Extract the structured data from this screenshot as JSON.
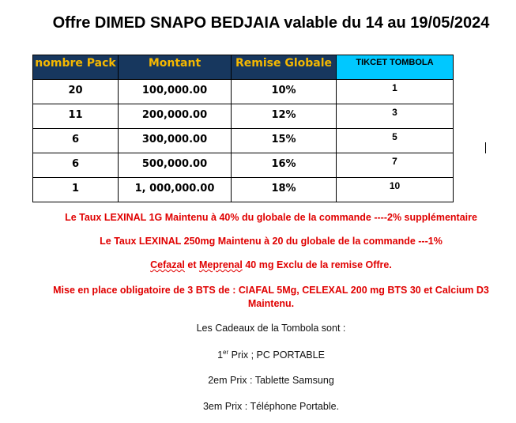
{
  "title": "Offre DIMED SNAPO BEDJAIA valable du 14 au 19/05/2024",
  "table": {
    "headers": [
      "nombre Pack",
      "Montant",
      "Remise Globale",
      "TIKCET TOMBOLA"
    ],
    "rows": [
      [
        "20",
        "100,000.00",
        "10%",
        "1"
      ],
      [
        "11",
        "200,000.00",
        "12%",
        "3"
      ],
      [
        "6",
        "300,000.00",
        "15%",
        "5"
      ],
      [
        "6",
        "500,000.00",
        "16%",
        "7"
      ],
      [
        "1",
        "1, 000,000.00",
        "18%",
        "10"
      ]
    ]
  },
  "notes": {
    "lexinal_1g": "Le Taux LEXINAL 1G Maintenu à 40% du globale de la commande ----2% supplémentaire",
    "lexinal_250": "Le Taux LEXINAL 250mg Maintenu à 20 du globale de la commande ---1%",
    "exclu_a": "Cefazal",
    "exclu_b": " et ",
    "exclu_c": "Meprenal",
    "exclu_d": " 40 mg Exclu de la remise Offre.",
    "mise_en_place_1": "Mise en place obligatoire de 3 BTS de : CIAFAL 5Mg, CELEXAL 200 mg BTS 30 et Calcium D3",
    "mise_en_place_2": "Maintenu."
  },
  "tombola": {
    "intro": "Les Cadeaux de la Tombola sont :",
    "prize1_num": "1",
    "prize1_sup": "er",
    "prize1_text": " Prix ; PC PORTABLE",
    "prize2": "2em Prix : Tablette Samsung",
    "prize3": "3em Prix : Téléphone Portable."
  },
  "colors": {
    "header_bg": "#17375e",
    "header_text": "#f5b800",
    "ticket_header_bg": "#00c8ff",
    "note_red": "#e00000"
  }
}
